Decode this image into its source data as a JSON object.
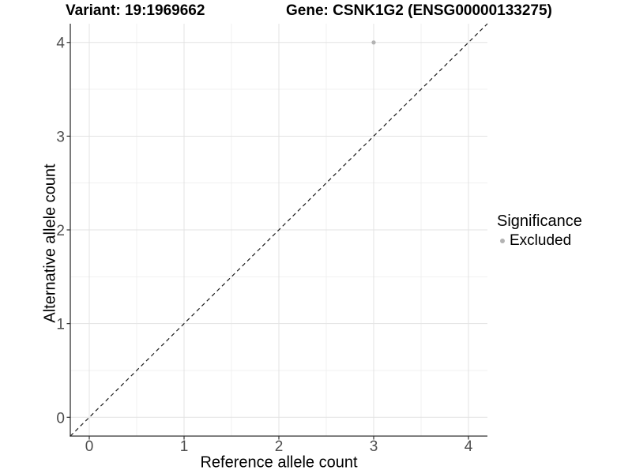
{
  "titles": {
    "variant": "Variant: 19:1969662",
    "gene": "Gene: CSNK1G2 (ENSG00000133275)"
  },
  "chart_data": {
    "type": "scatter",
    "title": "Variant: 19:1969662   Gene: CSNK1G2 (ENSG00000133275)",
    "xlabel": "Reference allele count",
    "ylabel": "Alternative allele count",
    "xlim": [
      -0.2,
      4.2
    ],
    "ylim": [
      -0.2,
      4.2
    ],
    "x_ticks": [
      0,
      1,
      2,
      3,
      4
    ],
    "y_ticks": [
      0,
      1,
      2,
      3,
      4
    ],
    "grid": "major and minor gridlines on, white background",
    "points": [
      {
        "x": 3,
        "y": 4,
        "series": "Excluded"
      }
    ],
    "reference_line": {
      "description": "identity line y = x",
      "style": "dashed",
      "from": [
        -0.2,
        -0.2
      ],
      "to": [
        4.2,
        4.2
      ]
    },
    "legend": {
      "title": "Significance",
      "position": "right",
      "entries": [
        {
          "label": "Excluded",
          "color": "#b3b3b3"
        }
      ]
    }
  },
  "colors": {
    "point": "#b3b3b3",
    "grid_major": "#e3e3e3",
    "grid_minor": "#f0f0f0",
    "axis_line": "#333333",
    "tick_label": "#4d4d4d",
    "dashed_line": "#1a1a1a",
    "background": "#ffffff"
  }
}
